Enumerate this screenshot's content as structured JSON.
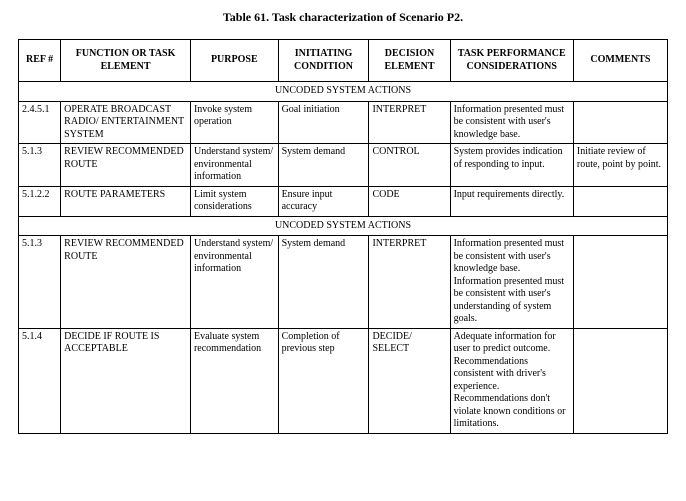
{
  "title": "Table 61.  Task characterization of Scenario P2.",
  "headers": {
    "ref": "REF #",
    "func": "FUNCTION OR TASK ELEMENT",
    "purpose": "PURPOSE",
    "init": "INITIATING CONDITION",
    "decision": "DECISION ELEMENT",
    "perf": "TASK PERFORMANCE CONSIDERATIONS",
    "comments": "COMMENTS"
  },
  "section1": "UNCODED SYSTEM ACTIONS",
  "section2": "UNCODED SYSTEM ACTIONS",
  "rows1": [
    {
      "ref": "2.4.5.1",
      "func": "OPERATE BROADCAST RADIO/ ENTERTAINMENT SYSTEM",
      "purpose": "Invoke system operation",
      "init": "Goal initiation",
      "decision": "INTERPRET",
      "perf": "Information presented must be consistent with user's knowledge base.",
      "comments": ""
    },
    {
      "ref": "5.1.3",
      "func": "REVIEW RECOMMENDED ROUTE",
      "purpose": "Understand system/ environmental information",
      "init": "System demand",
      "decision": "CONTROL",
      "perf": "System provides indication of responding to input.",
      "comments": "Initiate review of route, point by point."
    },
    {
      "ref": "5.1.2.2",
      "func": "ROUTE PARAMETERS",
      "purpose": "Limit system considerations",
      "init": "Ensure input accuracy",
      "decision": "CODE",
      "perf": "Input requirements directly.",
      "comments": ""
    }
  ],
  "rows2": [
    {
      "ref": "5.1.3",
      "func": "REVIEW RECOMMENDED ROUTE",
      "purpose": "Understand system/ environmental information",
      "init": "System demand",
      "decision": "INTERPRET",
      "perf": "Information presented must be consistent with user's knowledge base. Information presented must be consistent with user's understanding of system goals.",
      "comments": ""
    },
    {
      "ref": "5.1.4",
      "func": "DECIDE IF ROUTE IS ACCEPTABLE",
      "purpose": "Evaluate system recommendation",
      "init": "Completion of previous step",
      "decision": "DECIDE/ SELECT",
      "perf": "Adequate information for user to predict outcome. Recommendations consistent with driver's experience. Recommendations don't violate known conditions or limitations.",
      "comments": ""
    }
  ]
}
